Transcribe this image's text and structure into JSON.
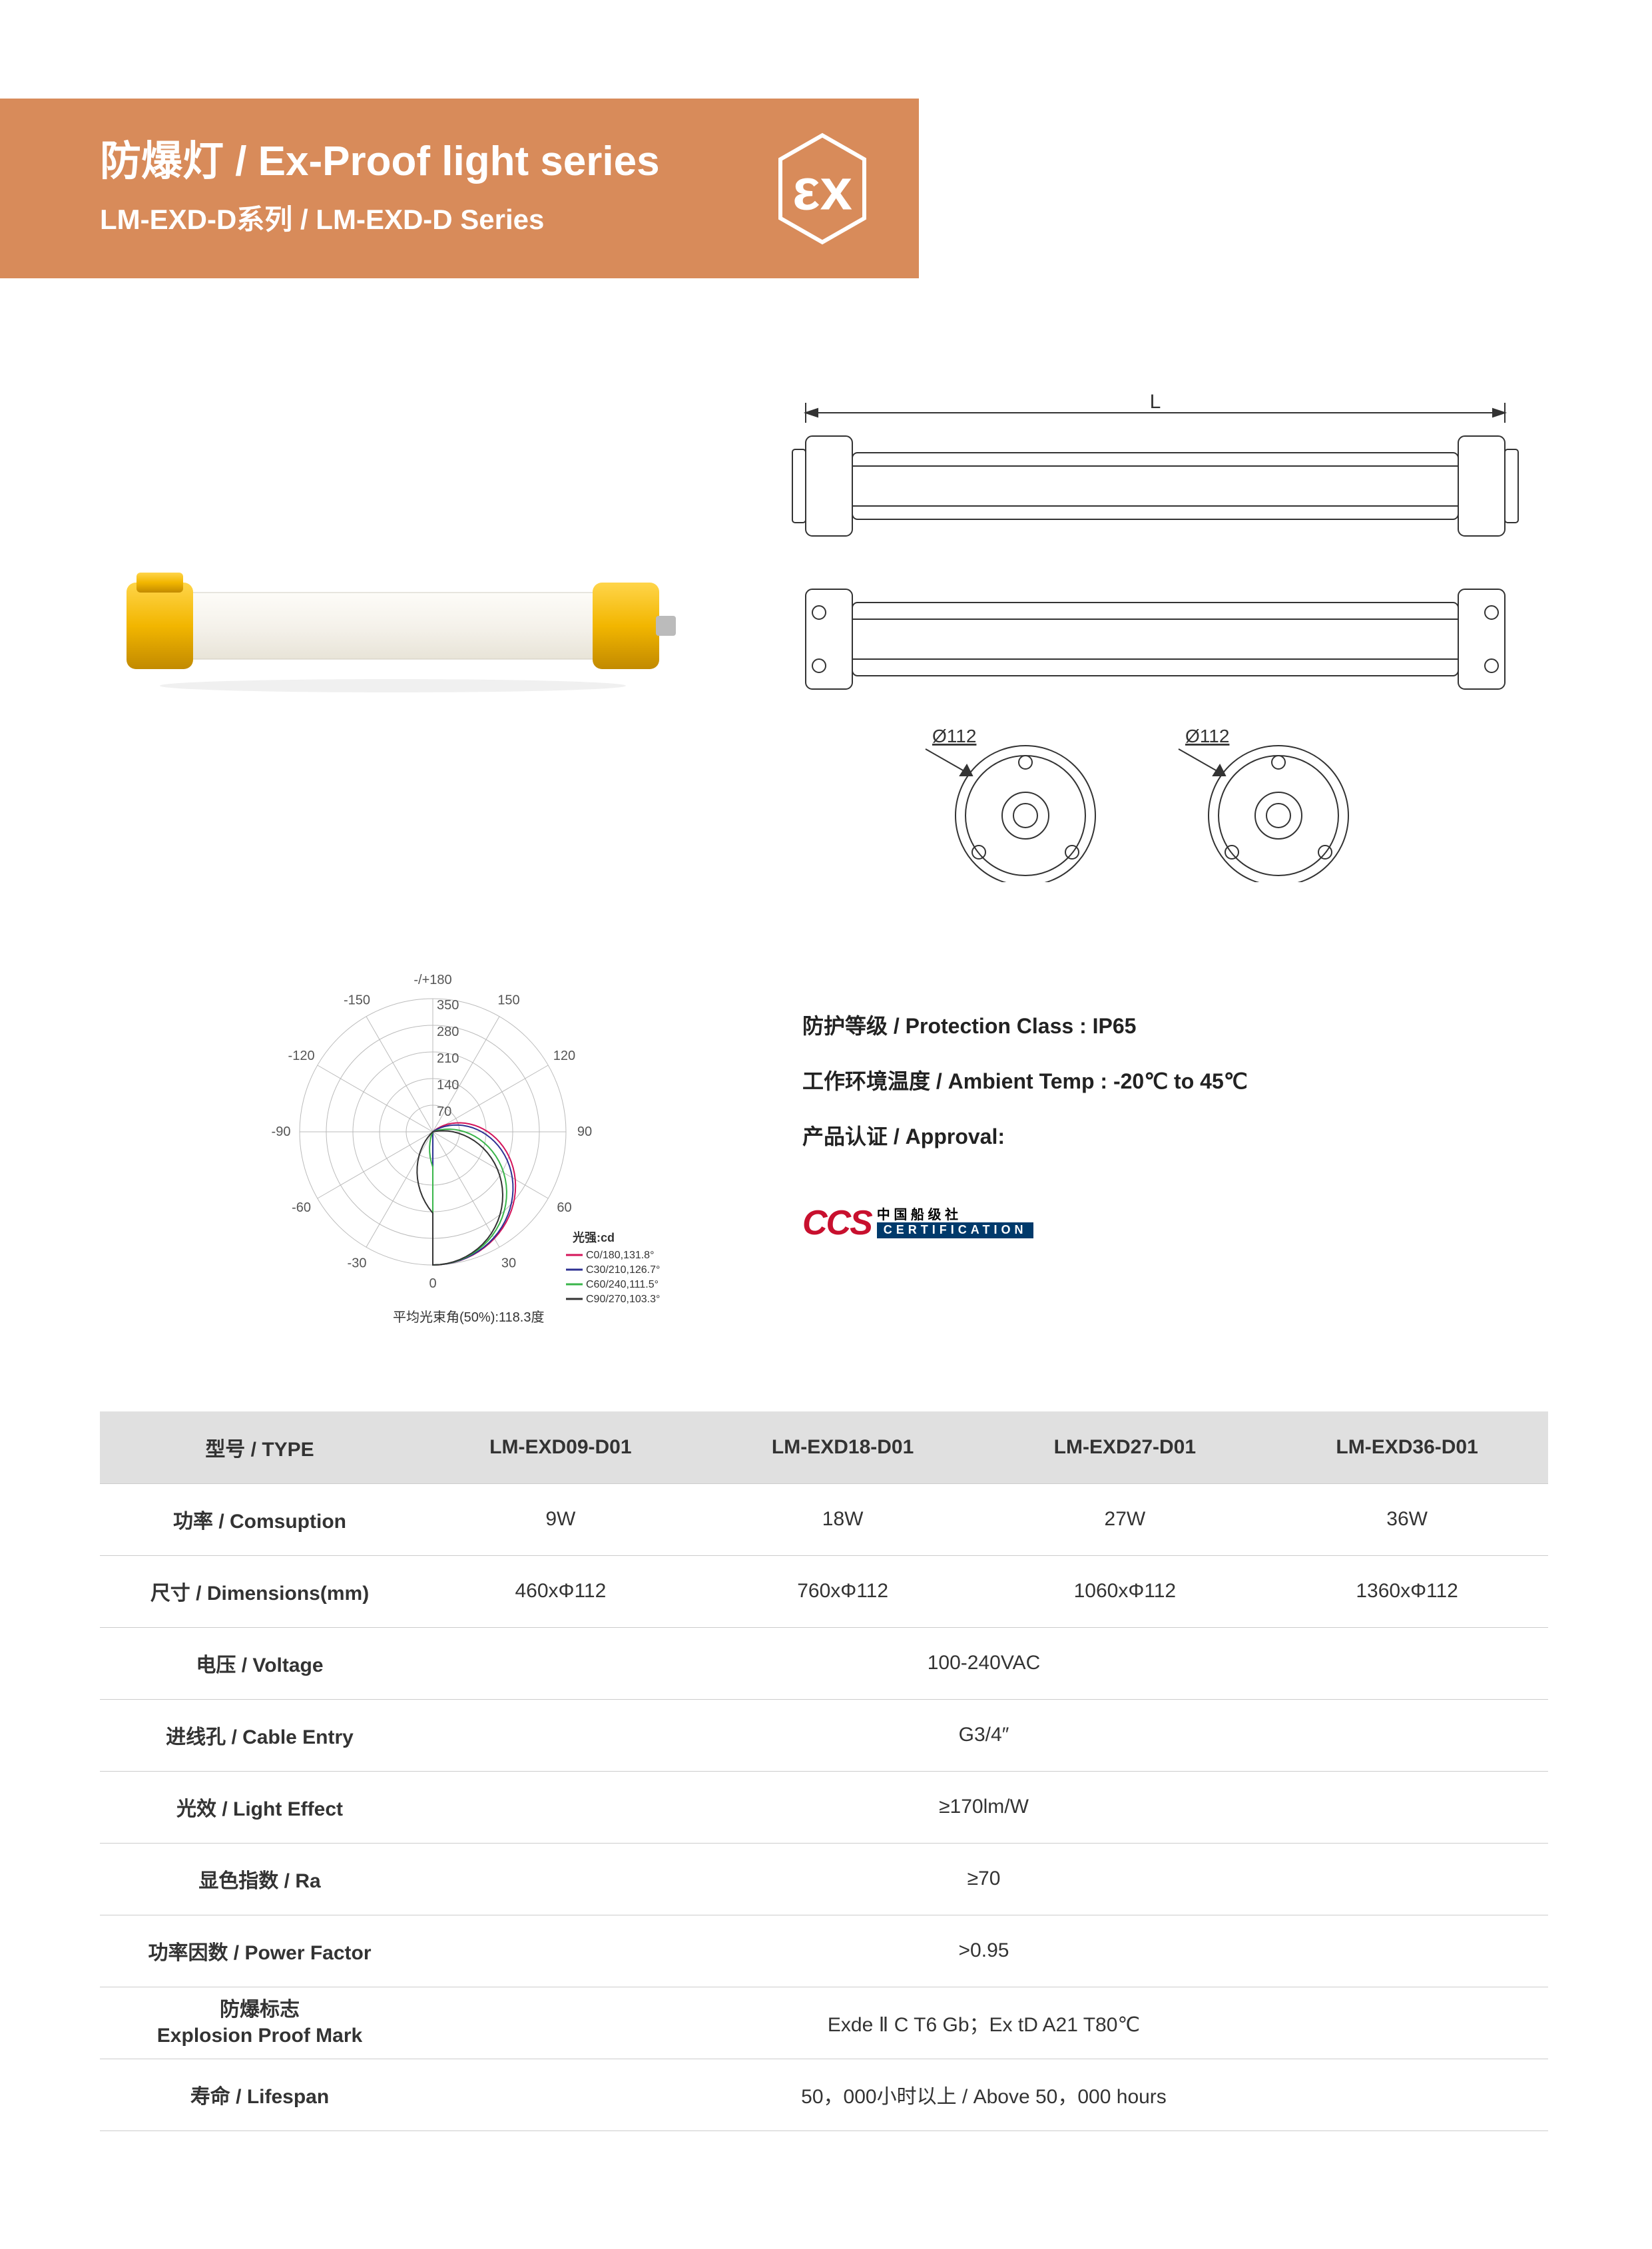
{
  "banner": {
    "title": "防爆灯 / Ex-Proof light series",
    "subtitle": "LM-EXD-D系列 / LM-EXD-D Series"
  },
  "ex_logo": {
    "stroke": "#ffffff",
    "text": "εx"
  },
  "product_photo": {
    "body_color": "#f5f2eb",
    "cap_color": "#f2b600",
    "cap_shadow": "#c28a00"
  },
  "tech_drawing": {
    "label_L": "L",
    "diameter_label": "Ø112",
    "stroke": "#333333"
  },
  "polar": {
    "angles": [
      "-/+180",
      "-150",
      "150",
      "-120",
      "120",
      "-90",
      "90",
      "-60",
      "60",
      "-30",
      "30",
      "0"
    ],
    "rings": [
      "70",
      "140",
      "210",
      "280",
      "350"
    ],
    "legend_title": "光强:cd",
    "legend": [
      {
        "label": "C0/180,131.8°",
        "color": "#d4145a"
      },
      {
        "label": "C30/210,126.7°",
        "color": "#2e3192"
      },
      {
        "label": "C60/240,111.5°",
        "color": "#39b54a"
      },
      {
        "label": "C90/270,103.3°",
        "color": "#333333"
      }
    ],
    "avg_label": "平均光束角(50%):118.3度",
    "tick_font": 20,
    "axis_color": "#666"
  },
  "specs": {
    "protection": "防护等级 / Protection Class : IP65",
    "ambient": "工作环境温度 / Ambient Temp : -20℃ to 45℃",
    "approval_label": "产品认证 / Approval:",
    "ccs": "CCS",
    "ccs_cn": "中 国 船 级 社",
    "ccs_cert": "CERTIFICATION"
  },
  "table": {
    "headers": [
      "型号 / TYPE",
      "LM-EXD09-D01",
      "LM-EXD18-D01",
      "LM-EXD27-D01",
      "LM-EXD36-D01"
    ],
    "rows": [
      {
        "label": "功率 / Comsuption",
        "cells": [
          "9W",
          "18W",
          "27W",
          "36W"
        ],
        "span": false
      },
      {
        "label": "尺寸 / Dimensions(mm)",
        "cells": [
          "460xΦ112",
          "760xΦ112",
          "1060xΦ112",
          "1360xΦ112"
        ],
        "span": false
      },
      {
        "label": "电压 / Voltage",
        "cells": [
          "100-240VAC"
        ],
        "span": true
      },
      {
        "label": "进线孔 / Cable Entry",
        "cells": [
          "G3/4″"
        ],
        "span": true
      },
      {
        "label": "光效 / Light Effect",
        "cells": [
          "≥170lm/W"
        ],
        "span": true
      },
      {
        "label": "显色指数  /  Ra",
        "cells": [
          "≥70"
        ],
        "span": true
      },
      {
        "label": "功率因数 / Power Factor",
        "cells": [
          ">0.95"
        ],
        "span": true
      },
      {
        "label": "防爆标志\nExplosion Proof Mark",
        "cells": [
          "Exde Ⅱ C T6 Gb；Ex tD A21 T80℃"
        ],
        "span": true,
        "twoLine": true
      },
      {
        "label": "寿命 / Lifespan",
        "cells": [
          "50，000小时以上 / Above 50，000 hours"
        ],
        "span": true
      }
    ]
  }
}
